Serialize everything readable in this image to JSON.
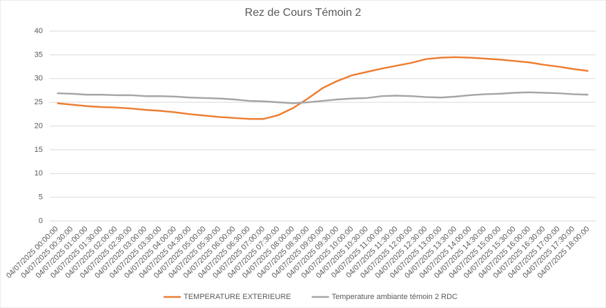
{
  "chart_data": {
    "type": "line",
    "title": "Rez de Cours Témoin 2",
    "categories": [
      "04/07/2025 00:00:00",
      "04/07/2025 00:30:00",
      "04/07/2025 01:00:00",
      "04/07/2025 01:30:00",
      "04/07/2025 02:00:00",
      "04/07/2025 02:30:00",
      "04/07/2025 03:00:00",
      "04/07/2025 03:30:00",
      "04/07/2025 04:00:00",
      "04/07/2025 04:30:00",
      "04/07/2025 05:00:00",
      "04/07/2025 05:30:00",
      "04/07/2025 06:00:00",
      "04/07/2025 06:30:00",
      "04/07/2025 07:00:00",
      "04/07/2025 07:30:00",
      "04/07/2025 08:00:00",
      "04/07/2025 08:30:00",
      "04/07/2025 09:00:00",
      "04/07/2025 09:30:00",
      "04/07/2025 10:00:00",
      "04/07/2025 10:30:00",
      "04/07/2025 11:00:00",
      "04/07/2025 11:30:00",
      "04/07/2025 12:00:00",
      "04/07/2025 12:30:00",
      "04/07/2025 13:00:00",
      "04/07/2025 13:30:00",
      "04/07/2025 14:00:00",
      "04/07/2025 14:30:00",
      "04/07/2025 15:00:00",
      "04/07/2025 15:30:00",
      "04/07/2025 16:00:00",
      "04/07/2025 16:30:00",
      "04/07/2025 17:00:00",
      "04/07/2025 17:30:00",
      "04/07/2025 18:00:00"
    ],
    "series": [
      {
        "name": "TEMPERATURE EXTERIEURE",
        "color": "#ed7d31",
        "values": [
          24.8,
          24.5,
          24.2,
          24.0,
          23.9,
          23.7,
          23.4,
          23.2,
          22.9,
          22.5,
          22.2,
          21.9,
          21.7,
          21.5,
          21.5,
          22.3,
          23.8,
          25.8,
          28.0,
          29.5,
          30.7,
          31.4,
          32.1,
          32.7,
          33.3,
          34.1,
          34.4,
          34.5,
          34.4,
          34.2,
          34.0,
          33.7,
          33.4,
          32.9,
          32.5,
          32.0,
          31.6
        ]
      },
      {
        "name": "Temperature ambiante témoin 2 RDC",
        "color": "#a5a5a5",
        "values": [
          26.9,
          26.8,
          26.6,
          26.6,
          26.5,
          26.5,
          26.3,
          26.3,
          26.2,
          26.0,
          25.9,
          25.8,
          25.6,
          25.3,
          25.2,
          25.0,
          24.8,
          25.0,
          25.3,
          25.6,
          25.8,
          25.9,
          26.3,
          26.4,
          26.3,
          26.1,
          26.0,
          26.2,
          26.5,
          26.7,
          26.8,
          27.0,
          27.1,
          27.0,
          26.9,
          26.7,
          26.6
        ]
      }
    ],
    "ylim": [
      0,
      40
    ],
    "yticks": [
      0,
      5,
      10,
      15,
      20,
      25,
      30,
      35,
      40
    ],
    "grid": true,
    "legend": "bottom"
  }
}
